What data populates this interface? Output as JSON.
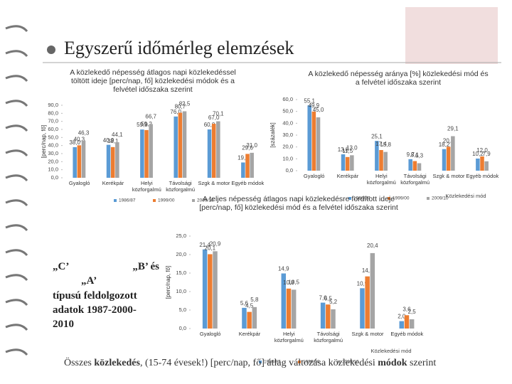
{
  "title": "Egyszerű időmérleg elemzések",
  "side_text": [
    "„C’",
    "„B’ és",
    "„A’",
    "típusú feldolgozott adatok 1987-2000-2010"
  ],
  "caption": {
    "pre": "Összes ",
    "bold1": "közlekedés",
    "mid": ", (15-74 évesek!) [perc/nap, fő] átlag változása közlekedési ",
    "bold2": "módok",
    "post": " szerint"
  },
  "chart_data": [
    {
      "type": "bar",
      "title": "A közlekedő népesség átlagos napi közlekedéssel töltött ideje [perc/nap, fő] közlekedési módok és a felvétel időszaka szerint",
      "ylabel": "[perc/nap, fő]",
      "categories": [
        "Gyalogló",
        "Kerékpár",
        "Helyi közforgalmú",
        "Távolsági közforgalmú",
        "Szgk & motor",
        "Egyéb módok"
      ],
      "series": [
        {
          "name": "1986/87",
          "color": "#5b9bd5",
          "values": [
            38.0,
            40.9,
            59.9,
            76.0,
            60.0,
            19.0
          ],
          "value_labels": [
            "38,0",
            "40,9",
            "59,9",
            "76,0",
            "60,0",
            "19,0"
          ]
        },
        {
          "name": "1999/00",
          "color": "#ed7d31",
          "values": [
            40.3,
            38.1,
            59.2,
            80.7,
            67.0,
            29.6
          ],
          "value_labels": [
            "40,3",
            "38,1",
            "59,2",
            "80,7",
            "67,0",
            "29,6"
          ]
        },
        {
          "name": "2009/10",
          "color": "#a5a5a5",
          "values": [
            46.3,
            44.1,
            66.7,
            82.5,
            70.1,
            31.0
          ],
          "value_labels": [
            "46,3",
            "44,1",
            "66,7",
            "82,5",
            "70,1",
            "31,0"
          ]
        }
      ],
      "ylim": [
        0,
        90
      ],
      "yticks": [
        {
          "value": 0,
          "label": "0,0"
        },
        {
          "value": 10,
          "label": "10,0"
        },
        {
          "value": 20,
          "label": "20,0"
        },
        {
          "value": 30,
          "label": "30,0"
        },
        {
          "value": 40,
          "label": "40,0"
        },
        {
          "value": 50,
          "label": "50,0"
        },
        {
          "value": 60,
          "label": "60,0"
        },
        {
          "value": 70,
          "label": "70,0"
        },
        {
          "value": 80,
          "label": "80,0"
        },
        {
          "value": 90,
          "label": "90,0"
        }
      ]
    },
    {
      "type": "bar",
      "title": "A közlekedő népesség aránya [%] közlekedési mód és a felvétel időszaka szerint",
      "ylabel": "[százalék]",
      "xlabel": "Közlekedési mód",
      "categories": [
        "Gyalogló",
        "Kerékpár",
        "Helyi közforgalmú",
        "Távolsági közforgalmú",
        "Szgk & motor",
        "Egyéb módok"
      ],
      "series": [
        {
          "name": "1986/87",
          "color": "#5b9bd5",
          "values": [
            55.1,
            13.8,
            25.1,
            9.7,
            18.2,
            10.2
          ],
          "value_labels": [
            "55,1",
            "13,8",
            "25,1",
            "9,7",
            "18,2",
            "10,2"
          ]
        },
        {
          "name": "1999/00",
          "color": "#ed7d31",
          "values": [
            49.9,
            11.5,
            17.4,
            8.1,
            20.2,
            12.0
          ],
          "value_labels": [
            "49,9",
            "11,5",
            "17,4",
            "8,1",
            "20,2",
            "12,0"
          ]
        },
        {
          "name": "2009/10",
          "color": "#a5a5a5",
          "values": [
            45.0,
            13.0,
            15.8,
            6.3,
            29.1,
            7.9
          ],
          "value_labels": [
            "45,0",
            "13,0",
            "15,8",
            "6,3",
            "29,1",
            "7,9"
          ]
        }
      ],
      "ylim": [
        0,
        60
      ],
      "yticks": [
        {
          "value": 0,
          "label": "0,0"
        },
        {
          "value": 10,
          "label": "10,0"
        },
        {
          "value": 20,
          "label": "20,0"
        },
        {
          "value": 30,
          "label": "30,0"
        },
        {
          "value": 40,
          "label": "40,0"
        },
        {
          "value": 50,
          "label": "50,0"
        },
        {
          "value": 60,
          "label": "60,0"
        }
      ]
    },
    {
      "type": "bar",
      "title": "A teljes népesség átlagos napi közlekedésre fordított ideje [perc/nap, fő] közlekedési mód és a felvétel időszaka szerint",
      "ylabel": "[perc/nap, fő]",
      "xlabel": "Közlekedési mód",
      "categories": [
        "Gyalogló",
        "Kerékpár",
        "Helyi közforgalmú",
        "Távolsági közforgalmú",
        "Szgk & motor",
        "Egyéb módok"
      ],
      "series": [
        {
          "name": "1986/87",
          "color": "#5b9bd5",
          "values": [
            21.4,
            5.6,
            14.9,
            7.0,
            10.9,
            2.0
          ],
          "value_labels": [
            "21,4",
            "5,6",
            "14,9",
            "7,0",
            "10,9",
            "2,0"
          ]
        },
        {
          "name": "1999/00",
          "color": "#ed7d31",
          "values": [
            20.1,
            4.5,
            10.8,
            6.5,
            14.1,
            3.6
          ],
          "value_labels": [
            "20,1",
            "4,5",
            "10,8",
            "6,5",
            "14,1",
            "3,6"
          ]
        },
        {
          "name": "2009/10",
          "color": "#a5a5a5",
          "values": [
            20.9,
            5.8,
            10.5,
            5.2,
            20.4,
            2.5
          ],
          "value_labels": [
            "20,9",
            "5,8",
            "10,5",
            "5,2",
            "20,4",
            "2,5"
          ]
        }
      ],
      "ylim": [
        0,
        25
      ],
      "yticks": [
        {
          "value": 0,
          "label": "0,0"
        },
        {
          "value": 5,
          "label": "5,0"
        },
        {
          "value": 10,
          "label": "10,0"
        },
        {
          "value": 15,
          "label": "15,0"
        },
        {
          "value": 20,
          "label": "20,0"
        },
        {
          "value": 25,
          "label": "25,0"
        }
      ]
    }
  ]
}
